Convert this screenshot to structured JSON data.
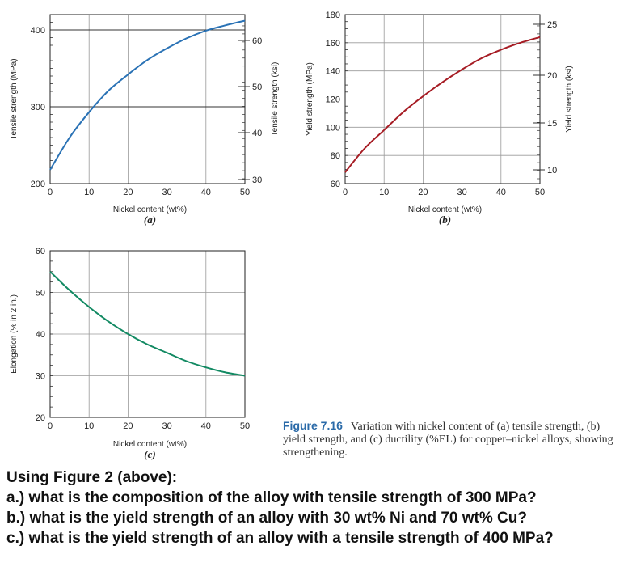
{
  "colors": {
    "grid": "#9a9a9a",
    "axis": "#222222",
    "tensile": "#2a72b5",
    "yield": "#a61c24",
    "elongation": "#138a63"
  },
  "chart_data": [
    {
      "type": "line",
      "panel_label": "(a)",
      "xlabel": "Nickel content (wt%)",
      "ylabel_left": "Tensile strength (MPa)",
      "ylabel_right": "Tensile strength (ksi)",
      "xlim": [
        0,
        50
      ],
      "ylim": [
        200,
        420
      ],
      "x_ticks": [
        "0",
        "10",
        "20",
        "30",
        "40",
        "50"
      ],
      "y_ticks_left": [
        "200",
        "300",
        "400"
      ],
      "y_ticks_right": [
        "30",
        "40",
        "50",
        "60"
      ],
      "grid": true,
      "series": [
        {
          "x": [
            0,
            5,
            10,
            15,
            20,
            25,
            30,
            35,
            40,
            45,
            50
          ],
          "y": [
            218,
            260,
            293,
            321,
            342,
            361,
            376,
            389,
            399,
            406,
            412
          ]
        }
      ]
    },
    {
      "type": "line",
      "panel_label": "(b)",
      "xlabel": "Nickel content (wt%)",
      "ylabel_left": "Yield strength (MPa)",
      "ylabel_right": "Yield strength (ksi)",
      "xlim": [
        0,
        50
      ],
      "ylim": [
        60,
        180
      ],
      "x_ticks": [
        "0",
        "10",
        "20",
        "30",
        "40",
        "50"
      ],
      "y_ticks_left": [
        "60",
        "80",
        "100",
        "120",
        "140",
        "160",
        "180"
      ],
      "y_ticks_right": [
        "10",
        "15",
        "20",
        "25"
      ],
      "grid": true,
      "series": [
        {
          "x": [
            0,
            5,
            10,
            15,
            20,
            25,
            30,
            35,
            40,
            45,
            50
          ],
          "y": [
            68,
            85,
            98,
            111,
            122,
            132,
            141,
            149,
            155,
            160,
            164
          ]
        }
      ]
    },
    {
      "type": "line",
      "panel_label": "(c)",
      "xlabel": "Nickel content (wt%)",
      "ylabel_left": "Elongation (% in 2 in.)",
      "xlim": [
        0,
        50
      ],
      "ylim": [
        20,
        60
      ],
      "x_ticks": [
        "0",
        "10",
        "20",
        "30",
        "40",
        "50"
      ],
      "y_ticks_left": [
        "20",
        "30",
        "40",
        "50",
        "60"
      ],
      "grid": true,
      "series": [
        {
          "x": [
            0,
            5,
            10,
            15,
            20,
            25,
            30,
            35,
            40,
            45,
            50
          ],
          "y": [
            55,
            50.5,
            46.5,
            43,
            40,
            37.5,
            35.5,
            33.5,
            32,
            30.8,
            30
          ]
        }
      ]
    }
  ],
  "caption": {
    "label": "Figure 7.16",
    "text": "Variation with nickel content of (a) tensile strength, (b) yield strength, and (c) ductility (%EL) for copper–nickel alloys, showing strengthening."
  },
  "questions": {
    "intro": "Using Figure 2 (above):",
    "items": [
      "a.) what is the composition of the alloy with tensile strength of 300 MPa?",
      "b.) what is the yield strength of an alloy with 30 wt% Ni and 70 wt% Cu?",
      "c.) what is the yield strength of an alloy with a tensile strength of 400 MPa?"
    ]
  }
}
